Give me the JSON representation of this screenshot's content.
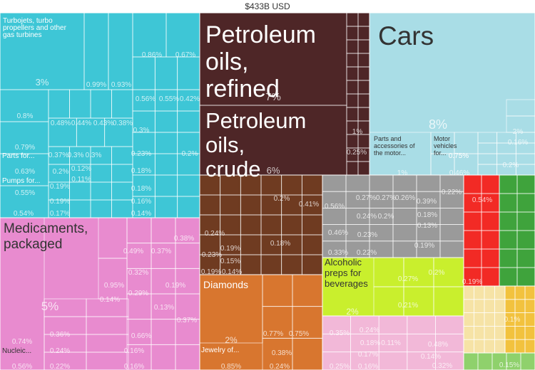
{
  "chart_data": {
    "type": "treemap",
    "title": "$433B USD",
    "products": [
      {
        "label": "Turbojets, turbo propellers and other gas turbines",
        "value": "3%",
        "color": "#3ec6d6"
      },
      {
        "label": "Parts for...",
        "value": "",
        "color": "#3ec6d6"
      },
      {
        "label": "Pumps for...",
        "value": "",
        "color": "#3ec6d6"
      },
      {
        "label": "Medicaments, packaged",
        "value": "5%",
        "color": "#e88bcf"
      },
      {
        "label": "Nucleic...",
        "value": "",
        "color": "#e88bcf"
      },
      {
        "label": "Petroleum oils, refined",
        "value": "7%",
        "color": "#4e2627"
      },
      {
        "label": "Petroleum oils, crude",
        "value": "6%",
        "color": "#4e2627"
      },
      {
        "label": "Cars",
        "value": "8%",
        "color": "#a9dde6"
      },
      {
        "label": "Parts and accessories of the motor...",
        "value": "1%",
        "color": "#a9dde6"
      },
      {
        "label": "Motor vehicles for...",
        "value": "0.75%",
        "color": "#a9dde6"
      },
      {
        "label": "Diamonds",
        "value": "2%",
        "color": "#d8762f"
      },
      {
        "label": "Jewelry of...",
        "value": "0.85%",
        "color": "#d8762f"
      },
      {
        "label": "Alcoholic preps for beverages",
        "value": "2%",
        "color": "#c9ef2d"
      }
    ],
    "percent_labels": [
      "0.86%",
      "0.67%",
      "0.99%",
      "0.93%",
      "0.56%",
      "0.55%",
      "0.42%",
      "0.8%",
      "0.48%",
      "0.44%",
      "0.43%",
      "0.38%",
      "0.3%",
      "0.79%",
      "0.37%",
      "0.3%",
      "0.3%",
      "0.23%",
      "0.2%",
      "0.63%",
      "0.2%",
      "0.12%",
      "0.11%",
      "0.18%",
      "0.55%",
      "0.19%",
      "0.18%",
      "0.19%",
      "0.16%",
      "0.54%",
      "0.17%",
      "0.14%",
      "1%",
      "0.25%",
      "2%",
      "0.16%",
      "0.2%",
      "0.46%",
      "0.75%",
      "0.24%",
      "0.23%",
      "0.19%",
      "0.15%",
      "0.19%",
      "0.14%",
      "0.2%",
      "0.41%",
      "0.18%",
      "0.56%",
      "0.27%",
      "0.27%",
      "0.26%",
      "0.39%",
      "0.22%",
      "0.24%",
      "0.2%",
      "0.18%",
      "0.13%",
      "0.46%",
      "0.23%",
      "0.19%",
      "0.33%",
      "0.22%",
      "0.54%",
      "0.19%",
      "0.1%",
      "0.15%",
      "0.38%",
      "0.49%",
      "0.37%",
      "0.32%",
      "0.95%",
      "0.29%",
      "0.14%",
      "0.19%",
      "0.13%",
      "0.37%",
      "0.66%",
      "0.74%",
      "0.36%",
      "0.16%",
      "0.24%",
      "0.56%",
      "0.22%",
      "0.16%",
      "0.77%",
      "0.75%",
      "0.38%",
      "0.24%",
      "0.27%",
      "0.2%",
      "0.21%",
      "0.35%",
      "0.24%",
      "0.18%",
      "0.11%",
      "0.48%",
      "0.32%",
      "0.17%",
      "0.14%",
      "0.25%",
      "0.16%"
    ],
    "colors": {
      "cyan": "#3ec6d6",
      "pink": "#e88bcf",
      "maroon": "#4e2627",
      "light_blue": "#a9dde6",
      "brown": "#6f3b21",
      "orange": "#d8762f",
      "gray": "#9a9a9a",
      "yellow_green": "#c9ef2d",
      "light_pink": "#f2b8d8",
      "red": "#f22a25",
      "green": "#3fa33c",
      "cream": "#f6e3a6",
      "gold": "#f2c23e",
      "light_green": "#8fd16c"
    }
  }
}
